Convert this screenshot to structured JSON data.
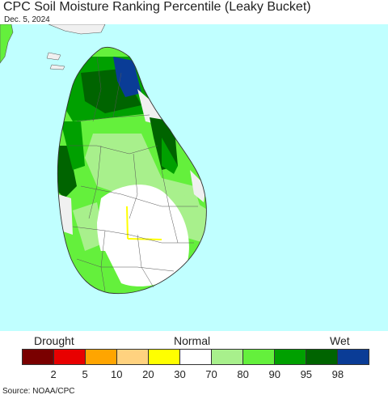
{
  "header": {
    "title": "CPC Soil Moisture Ranking Percentile (Leaky Bucket)",
    "date": "Dec. 5, 2024"
  },
  "legend": {
    "left_label": "Drought",
    "mid_label": "Normal",
    "right_label": "Wet",
    "colors": [
      "#7a0000",
      "#e80000",
      "#ffa500",
      "#ffd27f",
      "#ffff00",
      "#ffffff",
      "#a8f08c",
      "#64f03c",
      "#00a000",
      "#006400",
      "#0a3c96"
    ],
    "ticks": [
      "2",
      "5",
      "10",
      "20",
      "30",
      "70",
      "80",
      "90",
      "95",
      "98"
    ]
  },
  "footer": {
    "source": "Source: NOAA/CPC"
  },
  "map": {
    "ocean_color": "#c0ffff",
    "land_outside_color": "#f0f0f0",
    "region": "Sri Lanka"
  }
}
